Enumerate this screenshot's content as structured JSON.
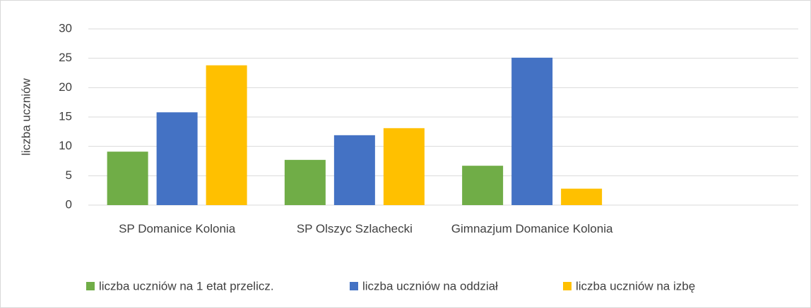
{
  "chart_data": {
    "type": "bar",
    "y_label": "liczba uczniów",
    "categories": [
      "SP Domanice Kolonia",
      "SP Olszyc Szlachecki",
      "Gimnazjum Domanice Kolonia",
      null
    ],
    "series": [
      {
        "name": "liczba uczniów na 1 etat przelicz.",
        "color": "#70ad47",
        "values": [
          9.1,
          7.7,
          6.7,
          null
        ]
      },
      {
        "name": "liczba uczniów na oddział",
        "color": "#4472c4",
        "values": [
          15.8,
          11.9,
          25.1,
          null
        ]
      },
      {
        "name": "liczba uczniów na izbę",
        "color": "#ffc000",
        "values": [
          23.8,
          13.1,
          2.8,
          null
        ]
      }
    ],
    "ylim": [
      0,
      30
    ],
    "yticks": [
      0,
      5,
      10,
      15,
      20,
      25,
      30
    ],
    "grid": true,
    "legend": "bottom"
  }
}
